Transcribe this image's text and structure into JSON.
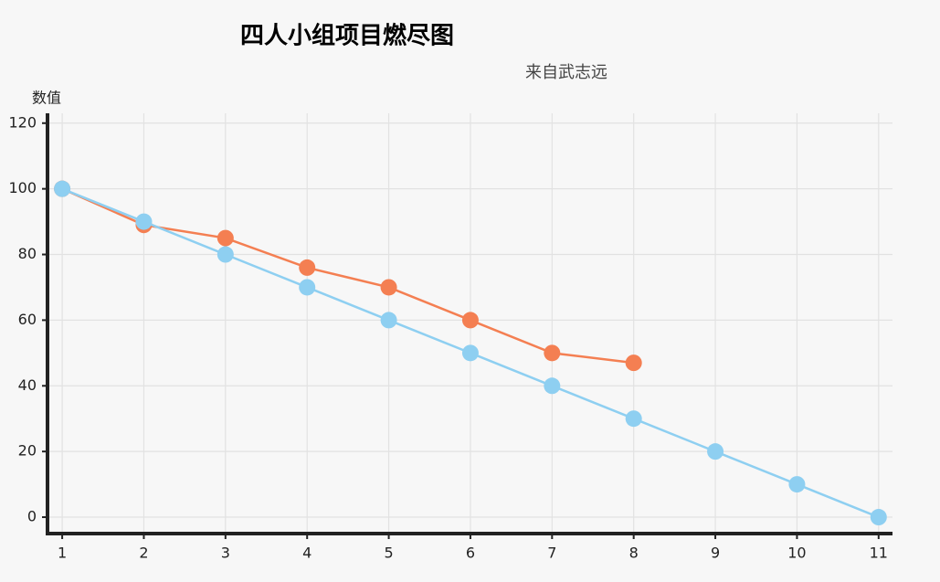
{
  "chart_data": {
    "type": "line",
    "title": "四人小组项目燃尽图",
    "subtitle": "来自武志远",
    "y_label": "数值",
    "x": [
      1,
      2,
      3,
      4,
      5,
      6,
      7,
      8,
      9,
      10,
      11
    ],
    "xlim": [
      0.82,
      11.17
    ],
    "xticks": [
      1,
      2,
      3,
      4,
      5,
      6,
      7,
      8,
      9,
      10,
      11
    ],
    "ylim": [
      -5,
      123
    ],
    "yticks": [
      0,
      20,
      40,
      60,
      80,
      100,
      120
    ],
    "grid": true,
    "series": [
      {
        "color": "#f47f52",
        "values": [
          100,
          89,
          85,
          76,
          70,
          60,
          50,
          47,
          null,
          null,
          null
        ]
      },
      {
        "color": "#8ecff1",
        "values": [
          100,
          90,
          80,
          70,
          60,
          50,
          40,
          30,
          20,
          10,
          0
        ]
      }
    ]
  }
}
